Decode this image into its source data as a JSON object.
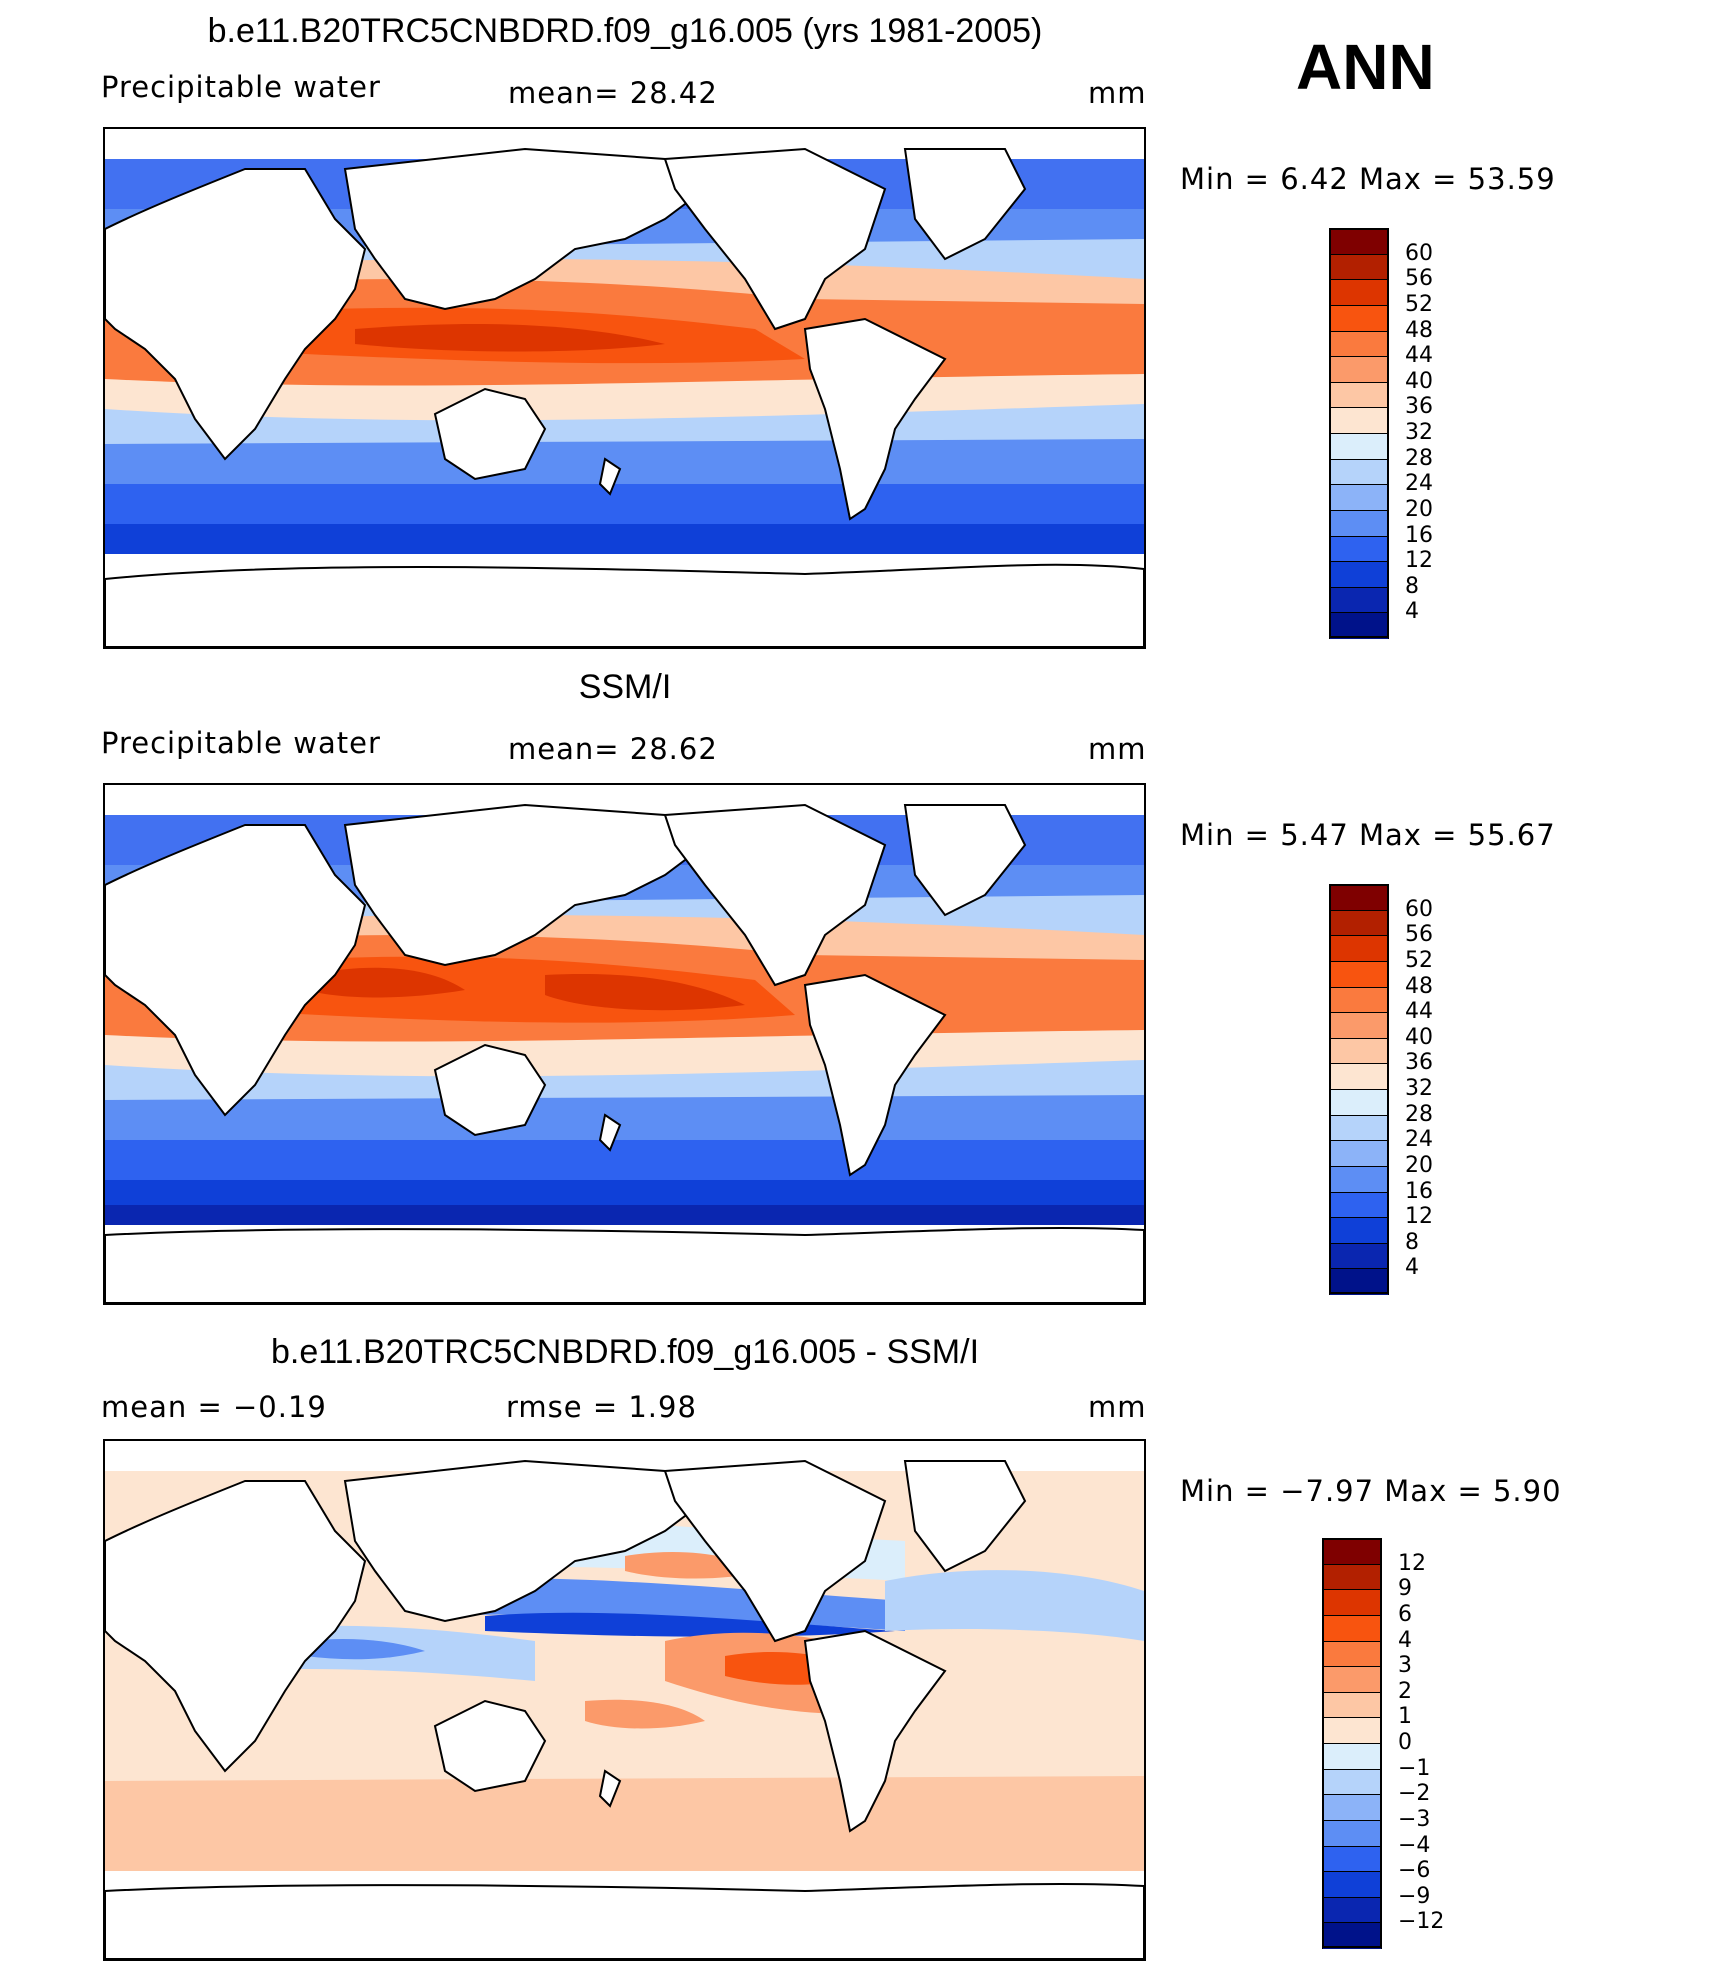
{
  "season": "ANN",
  "panels": [
    {
      "title": "b.e11.B20TRC5CNBDRD.f09_g16.005 (yrs 1981-2005)",
      "left_text": "Precipitable  water",
      "center_text": "mean=   28.42",
      "units": "mm",
      "minmax": "Min  =      6.42  Max  =     53.59",
      "colorbar": {
        "labels": [
          "60",
          "56",
          "52",
          "48",
          "44",
          "40",
          "36",
          "32",
          "28",
          "24",
          "20",
          "16",
          "12",
          "8",
          "4"
        ],
        "colors": [
          "#7f0000",
          "#b22000",
          "#dd3500",
          "#f8540f",
          "#fa7a3e",
          "#fb9a6a",
          "#fdc7a5",
          "#fde5d1",
          "#dbeefb",
          "#b5d3fa",
          "#8cb3f8",
          "#5d8ef4",
          "#2e62f0",
          "#0f40d8",
          "#0a26b0",
          "#00128a"
        ]
      }
    },
    {
      "title": "SSM/I",
      "left_text": "Precipitable  water",
      "center_text": "mean=   28.62",
      "units": "mm",
      "minmax": "Min  =      5.47  Max  =     55.67",
      "colorbar": {
        "labels": [
          "60",
          "56",
          "52",
          "48",
          "44",
          "40",
          "36",
          "32",
          "28",
          "24",
          "20",
          "16",
          "12",
          "8",
          "4"
        ],
        "colors": [
          "#7f0000",
          "#b22000",
          "#dd3500",
          "#f8540f",
          "#fa7a3e",
          "#fb9a6a",
          "#fdc7a5",
          "#fde5d1",
          "#dbeefb",
          "#b5d3fa",
          "#8cb3f8",
          "#5d8ef4",
          "#2e62f0",
          "#0f40d8",
          "#0a26b0",
          "#00128a"
        ]
      }
    },
    {
      "title": "b.e11.B20TRC5CNBDRD.f09_g16.005 - SSM/I",
      "left_text": "mean  =     −0.19",
      "center_text": "rmse  =      1.98",
      "units": "mm",
      "minmax": "Min  =    −7.97  Max  =       5.90",
      "colorbar": {
        "labels": [
          "12",
          "9",
          "6",
          "4",
          "3",
          "2",
          "1",
          "0",
          "−1",
          "−2",
          "−3",
          "−4",
          "−6",
          "−9",
          "−12"
        ],
        "colors": [
          "#7f0000",
          "#b22000",
          "#dd3500",
          "#f8540f",
          "#fa7a3e",
          "#fb9a6a",
          "#fdc7a5",
          "#fde5d1",
          "#dbeefb",
          "#b5d3fa",
          "#8cb3f8",
          "#5d8ef4",
          "#2e62f0",
          "#0f40d8",
          "#0a26b0",
          "#00128a"
        ]
      }
    }
  ]
}
